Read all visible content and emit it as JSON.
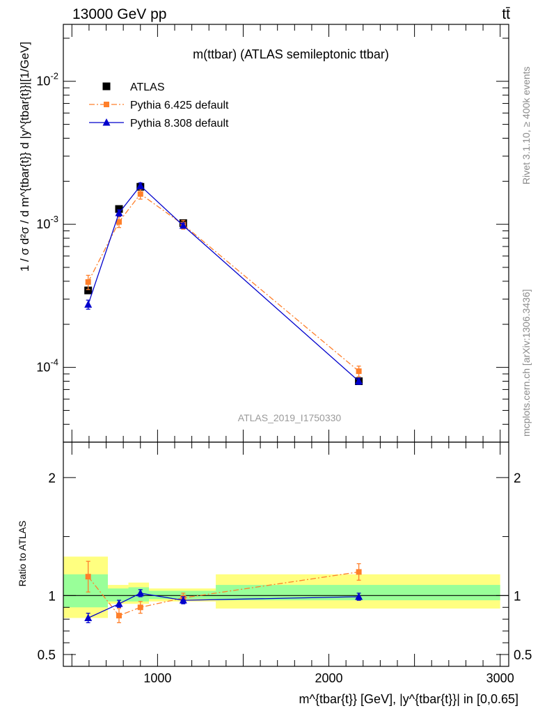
{
  "header": {
    "left": "13000 GeV pp",
    "right": "tt̄"
  },
  "side_labels": {
    "rivet": "Rivet 3.1.10, ≥ 400k events",
    "mcplots": "mcplots.cern.ch [arXiv:1306.3436]"
  },
  "chart_data": [
    {
      "type": "scatter",
      "title": "m(ttbar) (ATLAS semileptonic ttbar)",
      "watermark": "ATLAS_2019_I1750330",
      "ylabel": "1 / σ d²σ / d m^{tbar{t}} d |y^{tbar{t}}|[1/GeV]",
      "y_scale": "log",
      "xlim": [
        450,
        3050
      ],
      "ylim": [
        3e-05,
        0.025
      ],
      "y_ticks": [
        "10^{-4}",
        "10^{-3}",
        "10^{-2}"
      ],
      "legend_position": "top-left",
      "series": [
        {
          "name": "ATLAS",
          "color": "#000000",
          "marker": "square",
          "x": [
            595,
            775,
            900,
            1150,
            2175
          ],
          "y": [
            0.000345,
            0.00128,
            0.00183,
            0.00102,
            8e-05
          ],
          "xerr_low": [
            145,
            55,
            70,
            180,
            825
          ],
          "xerr_high": [
            115,
            55,
            70,
            180,
            825
          ]
        },
        {
          "name": "Pythia 6.425 default",
          "color": "#ff7f2a",
          "marker": "square",
          "line": "dashdot",
          "x": [
            595,
            775,
            900,
            1150,
            2175
          ],
          "y": [
            0.000395,
            0.00104,
            0.00163,
            0.000995,
            9.4e-05
          ],
          "err": [
            4.5e-05,
            9e-05,
            0.00013,
            7e-05,
            8e-06
          ]
        },
        {
          "name": "Pythia 8.308 default",
          "color": "#0000cc",
          "marker": "triangle",
          "line": "solid",
          "x": [
            595,
            775,
            900,
            1150,
            2175
          ],
          "y": [
            0.000275,
            0.0012,
            0.00186,
            0.00098,
            8e-05
          ],
          "err": [
            2e-05,
            6e-05,
            9e-05,
            4e-05,
            4e-06
          ]
        }
      ]
    },
    {
      "type": "scatter",
      "ylabel": "Ratio to ATLAS",
      "xlabel": "m^{tbar{t}} [GeV], |y^{tbar{t}}| in [0,0.65]",
      "xlim": [
        450,
        3050
      ],
      "ylim": [
        0.4,
        2.3
      ],
      "x_ticks": [
        1000,
        2000,
        3000
      ],
      "y_ticks": [
        0.5,
        1,
        2
      ],
      "reference_line": 1,
      "bands": [
        {
          "x_range": [
            450,
            710
          ],
          "green": [
            0.9,
            1.18
          ],
          "yellow": [
            0.81,
            1.33
          ]
        },
        {
          "x_range": [
            710,
            830
          ],
          "green": [
            0.95,
            1.06
          ],
          "yellow": [
            0.93,
            1.09
          ]
        },
        {
          "x_range": [
            830,
            950
          ],
          "green": [
            0.95,
            1.07
          ],
          "yellow": [
            0.93,
            1.11
          ]
        },
        {
          "x_range": [
            950,
            1340
          ],
          "green": [
            0.97,
            1.04
          ],
          "yellow": [
            0.95,
            1.06
          ]
        },
        {
          "x_range": [
            1340,
            3000
          ],
          "green": [
            0.96,
            1.09
          ],
          "yellow": [
            0.89,
            1.18
          ]
        }
      ],
      "series": [
        {
          "name": "Pythia 6.425 default",
          "color": "#ff7f2a",
          "marker": "square",
          "line": "dashdot",
          "x": [
            595,
            775,
            900,
            1150,
            2175
          ],
          "y": [
            1.16,
            0.83,
            0.9,
            0.98,
            1.2
          ],
          "err": [
            0.13,
            0.06,
            0.05,
            0.04,
            0.07
          ]
        },
        {
          "name": "Pythia 8.308 default",
          "color": "#0000cc",
          "marker": "triangle",
          "line": "solid",
          "x": [
            595,
            775,
            900,
            1150,
            2175
          ],
          "y": [
            0.81,
            0.93,
            1.02,
            0.96,
            0.99
          ],
          "err": [
            0.04,
            0.03,
            0.03,
            0.03,
            0.03
          ]
        }
      ]
    }
  ]
}
